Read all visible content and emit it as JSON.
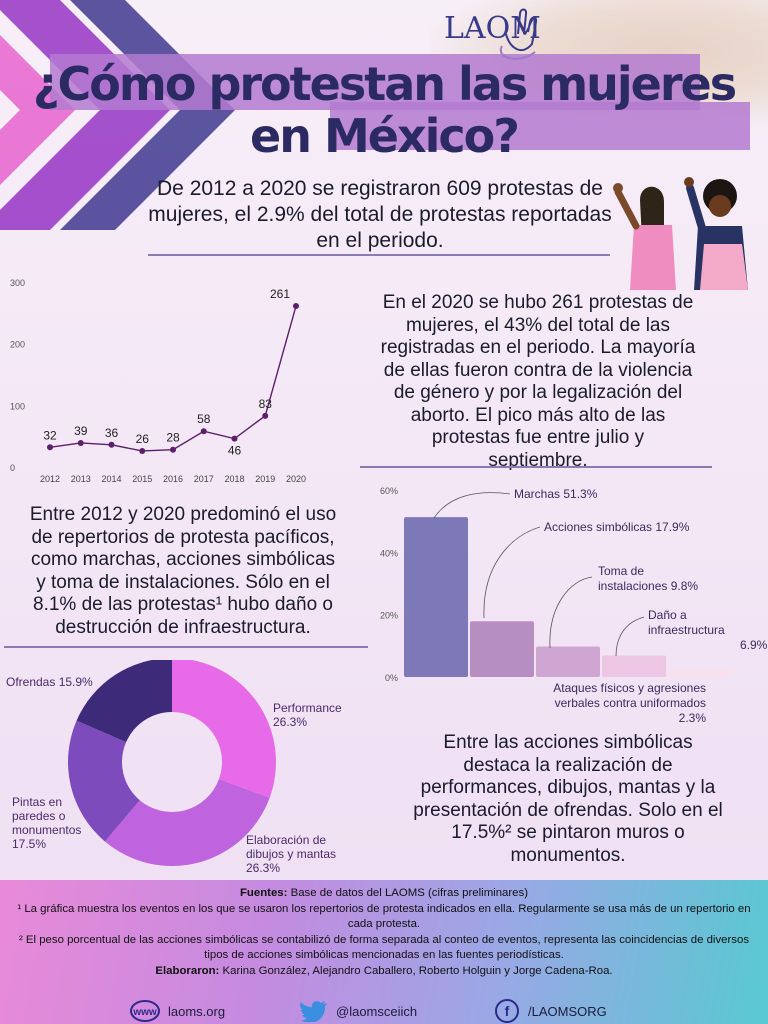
{
  "header": {
    "logo_text": "LAOMS",
    "title_line1": "¿Cómo protestan las mujeres",
    "title_line2": "en México?"
  },
  "intro": {
    "line1": "De 2012 a 2020 se registraron 609 protestas de",
    "line2": "mujeres, el 2.9% del total de protestas reportadas",
    "line3": "en el periodo."
  },
  "paragraph_2020": [
    "En el 2020 se hubo 261 protestas de",
    "mujeres, el 43% del total de las",
    "registradas en el periodo. La mayoría",
    "de ellas fueron contra de la violencia",
    "de género y por la legalización del",
    "aborto. El pico más alto de las",
    "protestas fue entre julio y",
    "septiembre."
  ],
  "paragraph_repertorios": [
    "Entre 2012 y 2020 predominó el uso",
    "de repertorios de protesta pacíficos,",
    "como marchas, acciones simbólicas",
    "y toma de instalaciones. Sólo en el",
    "8.1% de las protestas¹ hubo daño o",
    "destrucción de infraestructura."
  ],
  "paragraph_simbolicas": [
    "Entre las acciones simbólicas",
    "destaca la realización de",
    "performances, dibujos, mantas y la",
    "presentación de ofrendas. Solo en el",
    "17.5%² se pintaron muros o",
    "monumentos."
  ],
  "chart_data": [
    {
      "type": "line",
      "x": [
        "2012",
        "2013",
        "2014",
        "2015",
        "2016",
        "2017",
        "2018",
        "2019",
        "2020"
      ],
      "y": [
        32,
        39,
        36,
        26,
        28,
        58,
        46,
        83,
        261
      ],
      "data_labels": [
        "32",
        "39",
        "36",
        "26",
        "28",
        "58",
        "46",
        "83",
        "261"
      ],
      "yticks": [
        "0",
        "100",
        "200",
        "300"
      ],
      "ylim": [
        0,
        300
      ],
      "color": "#5c1f6b"
    },
    {
      "type": "bar",
      "categories": [
        "Marchas",
        "Acciones simbólicas",
        "Toma de instalaciones",
        "Daño a infraestructura",
        "Ataques físicos y agresiones verbales contra uniformados"
      ],
      "values": [
        51.3,
        17.9,
        9.8,
        6.9,
        2.3
      ],
      "labels": [
        [
          "Marchas 51.3%"
        ],
        [
          "Acciones simbólicas 17.9%"
        ],
        [
          "Toma de",
          "instalaciones 9.8%"
        ],
        [
          "Daño a",
          "infraestructura",
          "6.9%"
        ],
        [
          "Ataques físicos y agresiones",
          "verbales contra uniformados",
          "2.3%"
        ]
      ],
      "yticks": [
        "0%",
        "20%",
        "40%",
        "60%"
      ],
      "ylim": [
        0,
        60
      ],
      "colors": [
        "#7d78b8",
        "#b78ec2",
        "#cfa6d1",
        "#ecc6e2",
        "#f7e1ec"
      ]
    },
    {
      "type": "pie",
      "categories": [
        "Performance",
        "Elaboración de dibujos y mantas",
        "Pintas en paredes o monumentos",
        "Ofrendas"
      ],
      "values": [
        26.3,
        26.3,
        17.5,
        15.9
      ],
      "labels": [
        [
          "Performance",
          "26.3%"
        ],
        [
          "Elaboración de",
          "dibujos y mantas",
          "26.3%"
        ],
        [
          "Pintas en",
          "paredes o",
          "monumentos",
          "17.5%"
        ],
        [
          "Ofrendas 15.9%"
        ]
      ],
      "colors": [
        "#e76be8",
        "#bf63de",
        "#7e4bbd",
        "#3d2b7a"
      ]
    }
  ],
  "footer": {
    "sources_label": "Fuentes:",
    "sources_text": " Base de datos del LAOMS (cifras preliminares)",
    "note1": "¹ La gráfica muestra los eventos en los que se usaron los repertorios de protesta indicados en ella. Regularmente se usa más de un repertorio en cada protesta.",
    "note2": "² El peso porcentual de las acciones simbólicas se contabilizó de forma separada al conteo de eventos, representa las coincidencias de diversos tipos de acciones simbólicas mencionadas en las fuentes periodísticas.",
    "authors_label": "Elaboraron:",
    "authors_text": " Karina González, Alejandro Caballero, Roberto Holguin y Jorge Cadena-Roa.",
    "web_icon_text": "www",
    "website": "laoms.org",
    "twitter": "@laomsceiich",
    "facebook_icon_text": "f",
    "facebook": "/LAOMSORG"
  },
  "colors": {
    "title": "#2c2a63",
    "banner": "#b47ad0",
    "rule": "#8a7bb6",
    "line_series": "#5c1f6b"
  }
}
